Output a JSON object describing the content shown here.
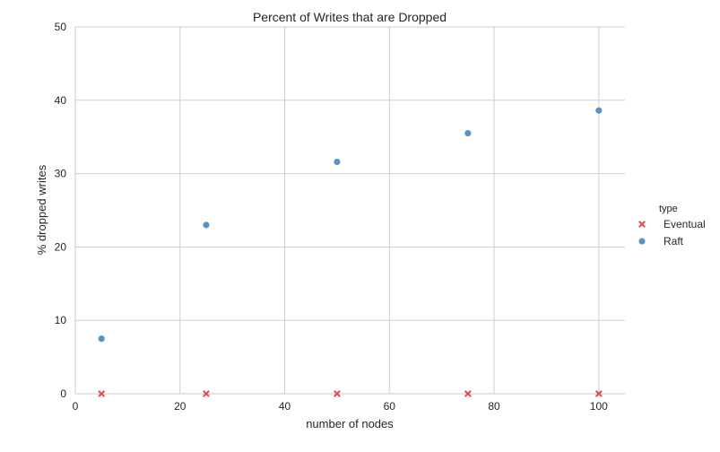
{
  "chart_data": {
    "type": "scatter",
    "title": "Percent of Writes that are Dropped",
    "xlabel": "number of nodes",
    "ylabel": "% dropped writes",
    "xlim": [
      0,
      105
    ],
    "ylim": [
      0,
      50
    ],
    "xticks": [
      0,
      20,
      40,
      60,
      80,
      100
    ],
    "yticks": [
      0,
      10,
      20,
      30,
      40,
      50
    ],
    "grid": true,
    "legend": {
      "title": "type",
      "placement": "right"
    },
    "series": [
      {
        "name": "Eventual",
        "marker": "x",
        "color": "#e24a4a",
        "x": [
          5,
          25,
          50,
          75,
          100
        ],
        "y": [
          0,
          0,
          0,
          0,
          0
        ]
      },
      {
        "name": "Raft",
        "marker": "o",
        "color": "#5b93c2",
        "x": [
          5,
          25,
          50,
          75,
          100
        ],
        "y": [
          7.5,
          23.0,
          31.6,
          35.5,
          38.6
        ]
      }
    ]
  }
}
